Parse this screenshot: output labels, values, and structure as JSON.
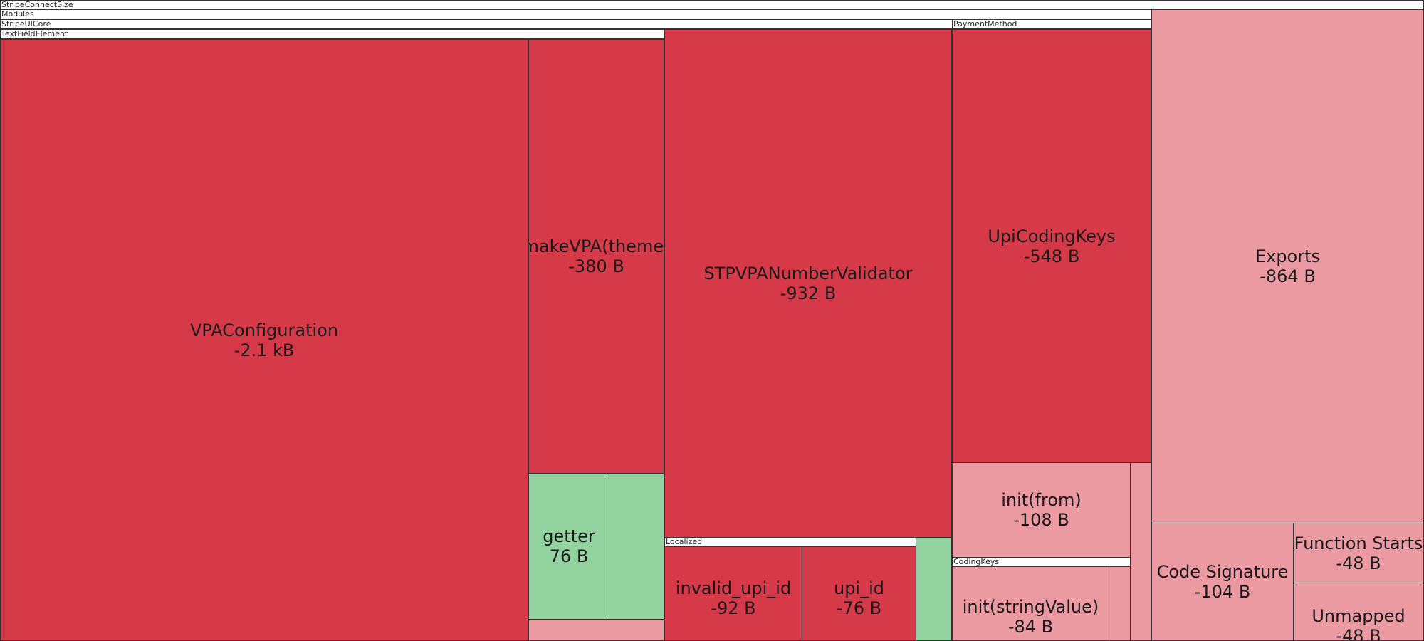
{
  "colors": {
    "removed_large": "#D63A48",
    "removed_small": "#EB9AA2",
    "added": "#92D3A0"
  },
  "chart_data": {
    "type": "treemap",
    "title": "",
    "groups": [
      {
        "label": "StripeConnectSize"
      },
      {
        "label": "Modules"
      },
      {
        "label": "StripeUICore"
      },
      {
        "label": "TextFieldElement"
      },
      {
        "label": "PaymentMethod"
      },
      {
        "label": "Localized"
      },
      {
        "label": "CodingKeys"
      }
    ],
    "cells": [
      {
        "group": "TextFieldElement",
        "name": "VPAConfiguration",
        "value": "-2.1 kB",
        "color": "removed_large"
      },
      {
        "group": "TextFieldElement",
        "name": "makeVPA(theme)",
        "value": "-380 B",
        "color": "removed_large"
      },
      {
        "group": "TextFieldElement",
        "name": "getter",
        "value": "76 B",
        "color": "added"
      },
      {
        "group": "TextFieldElement",
        "name": "",
        "value": "",
        "color": "added"
      },
      {
        "group": "TextFieldElement",
        "name": "",
        "value": "",
        "color": "removed_small"
      },
      {
        "group": "StripeUICore",
        "name": "STPVPANumberValidator",
        "value": "-932 B",
        "color": "removed_large"
      },
      {
        "group": "Localized",
        "name": "invalid_upi_id",
        "value": "-92 B",
        "color": "removed_large"
      },
      {
        "group": "Localized",
        "name": "upi_id",
        "value": "-76 B",
        "color": "removed_large"
      },
      {
        "group": "StripeUICore",
        "name": "",
        "value": "",
        "color": "added"
      },
      {
        "group": "PaymentMethod",
        "name": "UpiCodingKeys",
        "value": "-548 B",
        "color": "removed_large"
      },
      {
        "group": "PaymentMethod",
        "name": "init(from)",
        "value": "-108 B",
        "color": "removed_small"
      },
      {
        "group": "CodingKeys",
        "name": "init(stringValue)",
        "value": "-84 B",
        "color": "removed_small"
      },
      {
        "group": "CodingKeys",
        "name": "",
        "value": "",
        "color": "removed_small"
      },
      {
        "group": "PaymentMethod",
        "name": "",
        "value": "",
        "color": "removed_small"
      },
      {
        "group": "StripeConnectSize",
        "name": "Exports",
        "value": "-864 B",
        "color": "removed_small"
      },
      {
        "group": "StripeConnectSize",
        "name": "Code Signature",
        "value": "-104 B",
        "color": "removed_small"
      },
      {
        "group": "StripeConnectSize",
        "name": "Function Starts",
        "value": "-48 B",
        "color": "removed_small"
      },
      {
        "group": "StripeConnectSize",
        "name": "Unmapped",
        "value": "-48 B",
        "color": "removed_small"
      }
    ]
  }
}
